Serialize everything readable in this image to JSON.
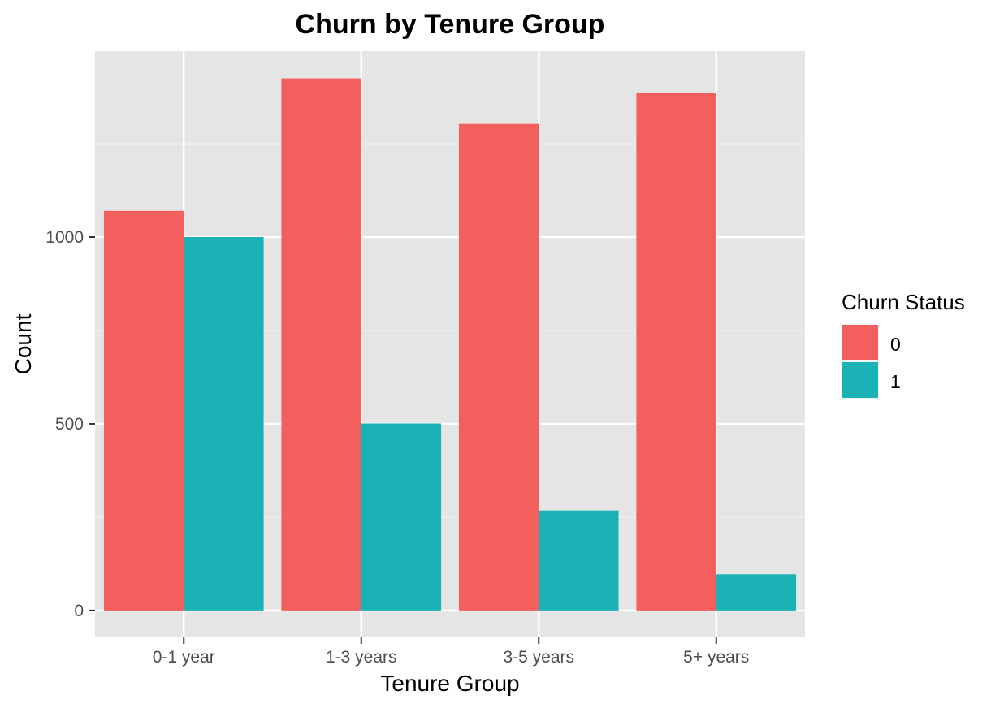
{
  "chart_data": {
    "type": "bar",
    "title": "Churn by Tenure Group",
    "xlabel": "Tenure Group",
    "ylabel": "Count",
    "categories": [
      "0-1 year",
      "1-3 years",
      "3-5 years",
      "5+ years"
    ],
    "series": [
      {
        "name": "0",
        "color": "#F25F5C",
        "values": [
          1070,
          1425,
          1303,
          1387
        ]
      },
      {
        "name": "1",
        "color": "#1AB2B7",
        "values": [
          1000,
          501,
          268,
          97
        ]
      }
    ],
    "ylim": [
      -72,
      1498
    ],
    "yticks": [
      0,
      500,
      1000
    ],
    "ytick_labels": [
      "0",
      "500",
      "1000"
    ],
    "grid": true,
    "panel_background": "#E5E5E5",
    "legend": {
      "title": "Churn Status",
      "position": "right"
    }
  }
}
